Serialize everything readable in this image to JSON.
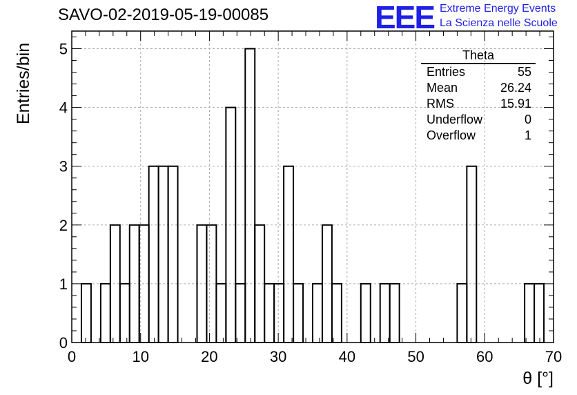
{
  "chart_data": {
    "type": "bar",
    "title": "SAVO-02-2019-05-19-00085",
    "xlabel": "θ [°]",
    "ylabel": "Entries/bin",
    "xlim": [
      0,
      70
    ],
    "ylim": [
      0,
      5.3
    ],
    "bin_width": 1.4,
    "bin_edges_start": 0,
    "values": [
      0,
      1,
      0,
      1,
      2,
      1,
      2,
      2,
      3,
      3,
      3,
      0,
      0,
      2,
      2,
      1,
      4,
      1,
      5,
      2,
      1,
      1,
      3,
      1,
      0,
      1,
      2,
      1,
      0,
      0,
      1,
      0,
      1,
      1,
      0,
      0,
      0,
      0,
      0,
      0,
      1,
      3,
      0,
      0,
      0,
      0,
      0,
      1,
      1,
      0
    ],
    "xticks": [
      0,
      10,
      20,
      30,
      40,
      50,
      60,
      70
    ],
    "yticks": [
      0,
      1,
      2,
      3,
      4,
      5
    ],
    "grid": true,
    "legend": "top-right"
  },
  "logo": {
    "mark": "EEE",
    "line1": "Extreme Energy Events",
    "line2": "La Scienza nelle Scuole"
  },
  "stats": {
    "name": "Theta",
    "rows": [
      {
        "label": "Entries",
        "value": "55"
      },
      {
        "label": "Mean",
        "value": "26.24"
      },
      {
        "label": "RMS",
        "value": "15.91"
      },
      {
        "label": "Underflow",
        "value": "0"
      },
      {
        "label": "Overflow",
        "value": "1"
      }
    ]
  },
  "colors": {
    "line": "#000000",
    "grid": "#aaaaaa",
    "logo": "#1f1fe8"
  }
}
